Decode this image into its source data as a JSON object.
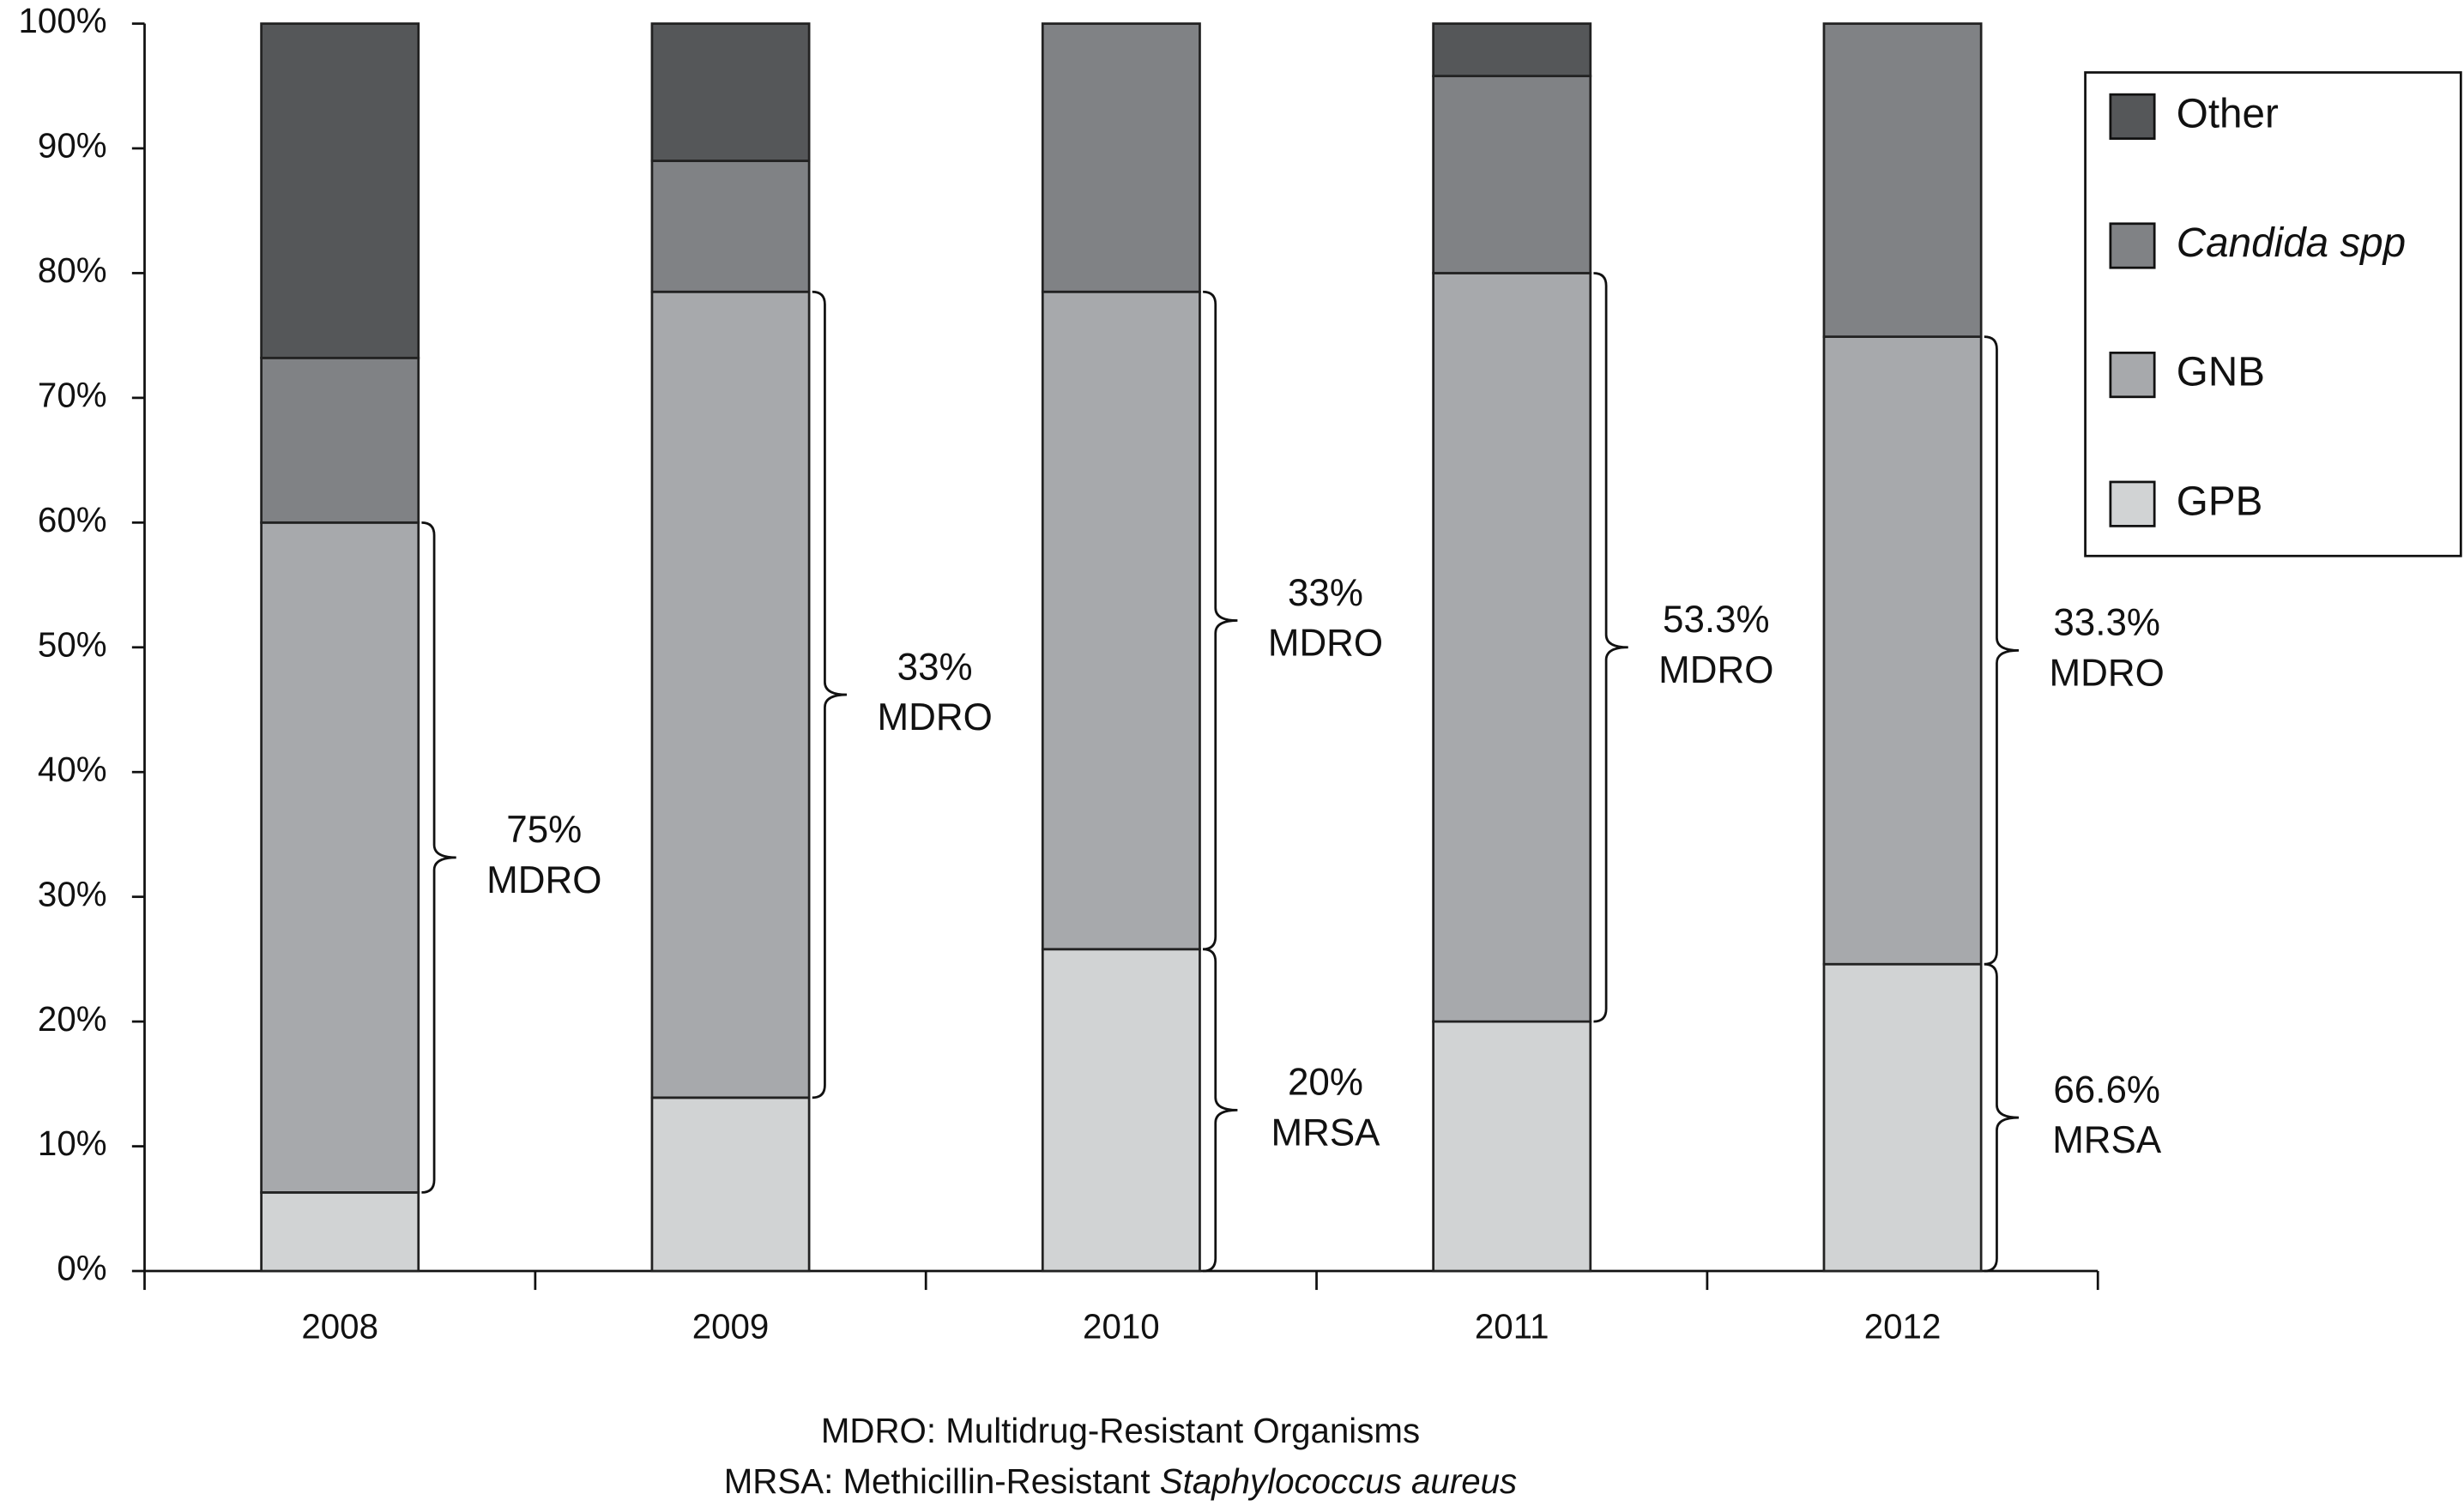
{
  "chart_data": {
    "type": "stacked_bar",
    "categories": [
      "2008",
      "2009",
      "2010",
      "2011",
      "2012"
    ],
    "series": [
      {
        "name": "GPB",
        "color": "#d1d3d4",
        "values": [
          6.3,
          13.9,
          25.8,
          20,
          24.6
        ]
      },
      {
        "name": "GNB",
        "color": "#a7a9ac",
        "values": [
          53.7,
          64.6,
          52.7,
          60,
          50.3
        ]
      },
      {
        "name": "Candida spp",
        "color": "#808285",
        "values": [
          13.2,
          10.5,
          21.5,
          15.8,
          25.1
        ]
      },
      {
        "name": "Other",
        "color": "#555759",
        "values": [
          26.8,
          11,
          0,
          4.2,
          0
        ]
      }
    ],
    "ylim": [
      0,
      100
    ],
    "yticks": [
      {
        "value": 0,
        "label": "0%"
      },
      {
        "value": 10,
        "label": "10%"
      },
      {
        "value": 20,
        "label": "20%"
      },
      {
        "value": 30,
        "label": "30%"
      },
      {
        "value": 40,
        "label": "40%"
      },
      {
        "value": 50,
        "label": "50%"
      },
      {
        "value": 60,
        "label": "60%"
      },
      {
        "value": 70,
        "label": "70%"
      },
      {
        "value": 80,
        "label": "80%"
      },
      {
        "value": 90,
        "label": "90%"
      },
      {
        "value": 100,
        "label": "100%"
      }
    ],
    "annotations": [
      {
        "text": [
          "75%",
          "MDRO"
        ]
      },
      {
        "text": [
          "33%",
          "MDRO"
        ]
      },
      {
        "text": [
          "33%",
          "MDRO"
        ]
      },
      {
        "text": [
          "20%",
          "MRSA"
        ]
      },
      {
        "text": [
          "53.3%",
          "MDRO"
        ]
      },
      {
        "text": [
          "33.3%",
          "MDRO"
        ]
      },
      {
        "text": [
          "66.6%",
          "MRSA"
        ]
      }
    ],
    "footnotes": [
      [
        "MDRO: Multidrug-Resistant Organisms"
      ],
      [
        "MRSA: Methicillin-Resistant ",
        "Staphylococcus aureus"
      ]
    ],
    "legend": "upper right"
  }
}
